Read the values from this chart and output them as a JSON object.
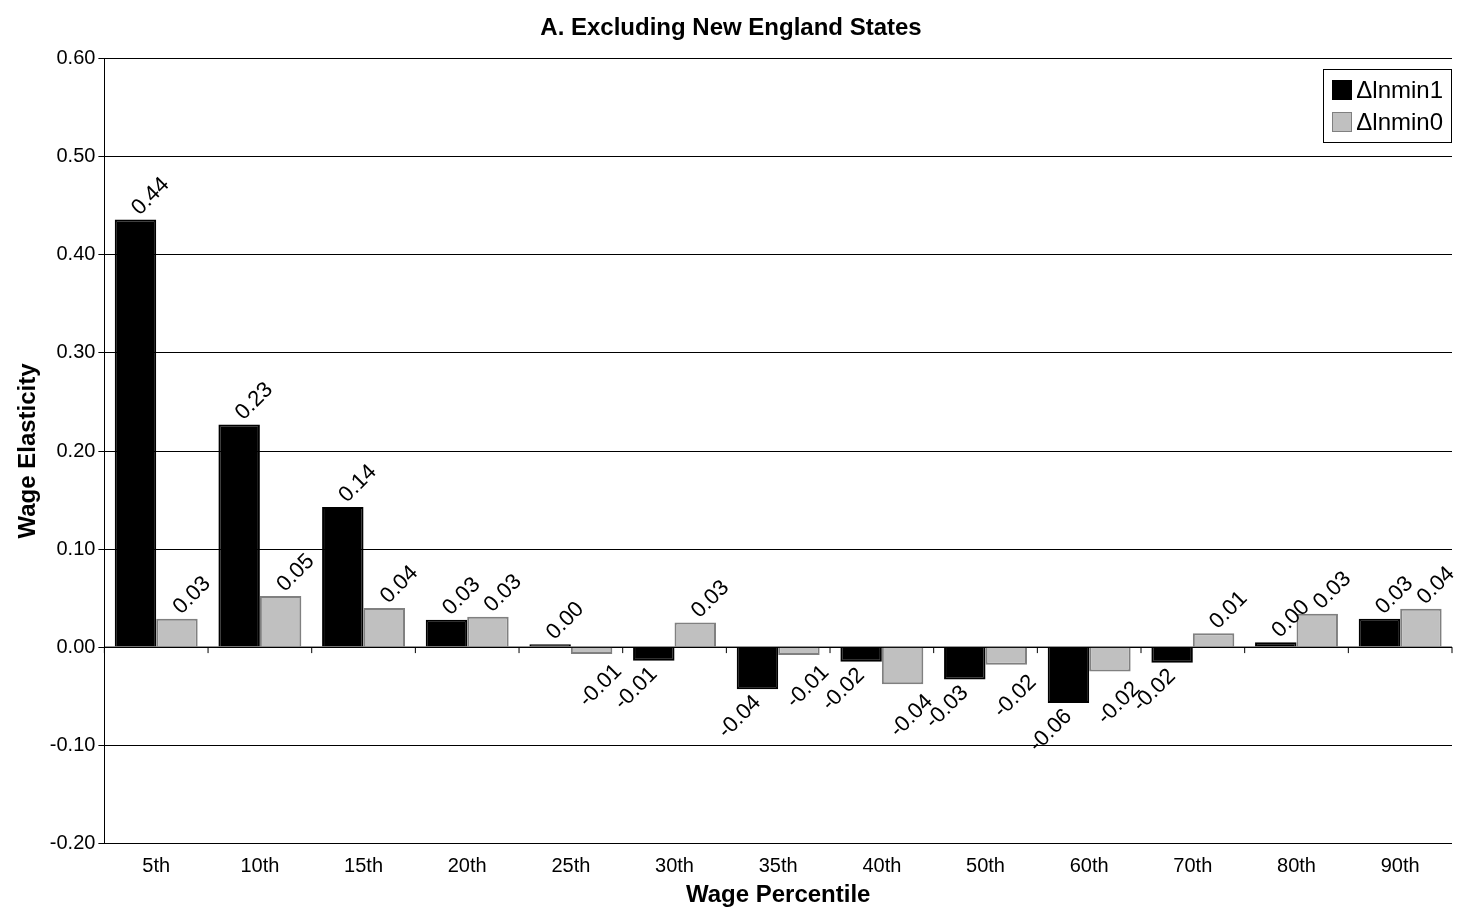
{
  "chart_data": {
    "type": "bar",
    "title": "A. Excluding New England States",
    "xlabel": "Wage Percentile",
    "ylabel": "Wage Elasticity",
    "categories": [
      "5th",
      "10th",
      "15th",
      "20th",
      "25th",
      "30th",
      "35th",
      "40th",
      "50th",
      "60th",
      "70th",
      "80th",
      "90th"
    ],
    "series": [
      {
        "name": "Δlnmin1",
        "color": "#000000",
        "values": [
          0.436,
          0.227,
          0.143,
          0.028,
          0.003,
          -0.014,
          -0.043,
          -0.015,
          -0.033,
          -0.057,
          -0.016,
          0.005,
          0.029
        ],
        "value_labels": [
          "0.44",
          "0.23",
          "0.14",
          "0.03",
          "0.00",
          "-0.01",
          "-0.04",
          "-0.02",
          "-0.03",
          "-0.06",
          "-0.02",
          "0.00",
          "0.03"
        ]
      },
      {
        "name": "Δlnmin0",
        "color": "#c0c0c0",
        "values": [
          0.029,
          0.052,
          0.04,
          0.031,
          -0.007,
          0.025,
          -0.008,
          -0.038,
          -0.018,
          -0.025,
          0.014,
          0.034,
          0.039
        ],
        "value_labels": [
          "0.03",
          "0.05",
          "0.04",
          "0.03",
          "-0.01",
          "0.03",
          "-0.01",
          "-0.04",
          "-0.02",
          "-0.02",
          "0.01",
          "0.03",
          "0.04"
        ]
      }
    ],
    "ylim": [
      -0.2,
      0.6
    ],
    "yticks": [
      {
        "value": -0.2,
        "label": "-0.20"
      },
      {
        "value": -0.1,
        "label": "-0.10"
      },
      {
        "value": 0,
        "label": "0.00"
      },
      {
        "value": 0.1,
        "label": "0.10"
      },
      {
        "value": 0.2,
        "label": "0.20"
      },
      {
        "value": 0.3,
        "label": "0.30"
      },
      {
        "value": 0.4,
        "label": "0.40"
      },
      {
        "value": 0.5,
        "label": "0.50"
      },
      {
        "value": 0.6,
        "label": "0.60"
      }
    ],
    "grid": "y",
    "legend": "top right"
  }
}
